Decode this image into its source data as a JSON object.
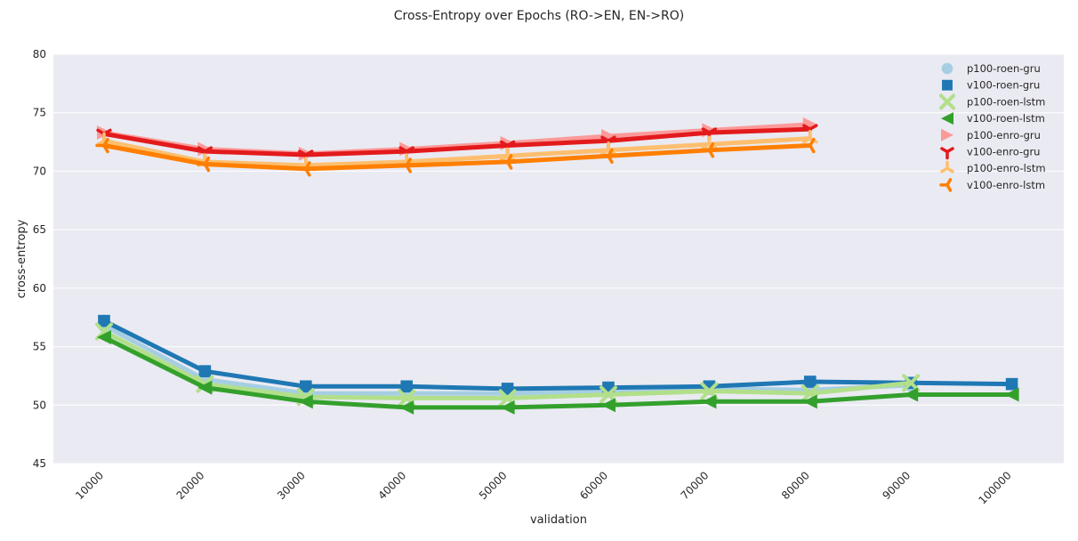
{
  "chart_data": {
    "type": "line",
    "title": "Cross-Entropy over Epochs (RO->EN, EN->RO)",
    "xlabel": "validation",
    "ylabel": "cross-entropy",
    "categories": [
      "10000",
      "20000",
      "30000",
      "40000",
      "50000",
      "60000",
      "70000",
      "80000",
      "90000",
      "100000"
    ],
    "ylim": [
      45,
      80
    ],
    "yticks": [
      "45",
      "50",
      "55",
      "60",
      "65",
      "70",
      "75",
      "80"
    ],
    "grid": true,
    "legend_position": "top-right",
    "series": [
      {
        "name": "p100-roen-gru",
        "color": "#a6cee3",
        "marker": "circle",
        "values": [
          56.8,
          52.2,
          51.0,
          51.0,
          51.0,
          51.2,
          51.4,
          51.3,
          51.7,
          null
        ]
      },
      {
        "name": "v100-roen-gru",
        "color": "#1f78b4",
        "marker": "square",
        "values": [
          57.2,
          52.9,
          51.6,
          51.6,
          51.4,
          51.5,
          51.6,
          52.0,
          51.9,
          51.8
        ]
      },
      {
        "name": "p100-roen-lstm",
        "color": "#b2df8a",
        "marker": "x",
        "values": [
          56.3,
          51.8,
          50.7,
          50.6,
          50.6,
          50.9,
          51.2,
          51.0,
          51.9,
          null
        ]
      },
      {
        "name": "v100-roen-lstm",
        "color": "#33a02c",
        "marker": "triangle-left",
        "values": [
          55.8,
          51.5,
          50.3,
          49.8,
          49.8,
          50.0,
          50.3,
          50.3,
          50.9,
          50.9
        ]
      },
      {
        "name": "p100-enro-gru",
        "color": "#fb9a99",
        "marker": "triangle-right",
        "values": [
          73.3,
          71.9,
          71.5,
          71.9,
          72.4,
          73.0,
          73.5,
          74.0,
          null,
          null
        ]
      },
      {
        "name": "v100-enro-gru",
        "color": "#e31a1c",
        "marker": "tri-down",
        "values": [
          73.2,
          71.7,
          71.4,
          71.7,
          72.2,
          72.6,
          73.3,
          73.6,
          null,
          null
        ]
      },
      {
        "name": "p100-enro-lstm",
        "color": "#fdbf6f",
        "marker": "tri-up",
        "values": [
          72.6,
          70.8,
          70.5,
          70.8,
          71.3,
          71.8,
          72.3,
          72.8,
          null,
          null
        ]
      },
      {
        "name": "v100-enro-lstm",
        "color": "#ff7f00",
        "marker": "tri-left",
        "values": [
          72.2,
          70.6,
          70.2,
          70.5,
          70.8,
          71.3,
          71.8,
          72.2,
          null,
          null
        ]
      }
    ]
  }
}
